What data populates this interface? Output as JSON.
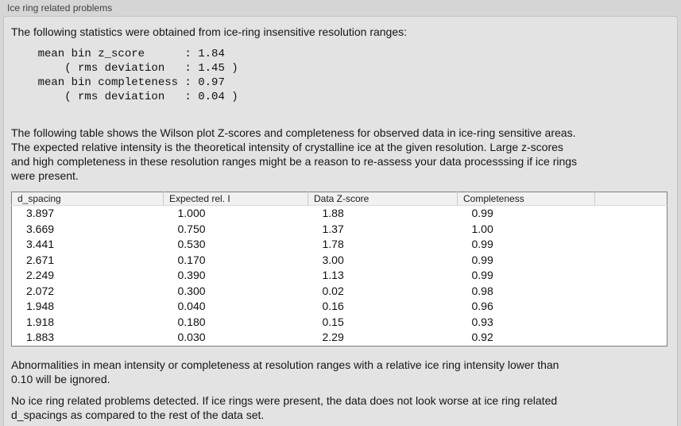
{
  "section": {
    "title": "Ice ring related problems",
    "intro": "The following statistics were obtained from ice-ring insensitive resolution ranges:",
    "statistics": {
      "mean_bin_z_score": "1.84",
      "z_score_rms_deviation": "1.45",
      "mean_bin_completeness": "0.97",
      "completeness_rms_deviation": "0.04",
      "lines": [
        "    mean bin z_score      : 1.84",
        "        ( rms deviation   : 1.45 )",
        "    mean bin completeness : 0.97",
        "        ( rms deviation   : 0.04 )"
      ]
    },
    "table_description": "The following table shows the Wilson plot Z-scores and completeness for observed data in ice-ring sensitive areas.\nThe expected relative intensity is the theoretical intensity of crystalline ice at the given resolution. Large z-scores\nand high completeness in these resolution ranges might be a reason to re-assess your data processsing if ice rings\nwere present.",
    "table": {
      "columns": [
        "d_spacing",
        "Expected rel. I",
        "Data Z-score",
        "Completeness",
        ""
      ],
      "rows": [
        [
          "3.897",
          "1.000",
          "1.88",
          "0.99"
        ],
        [
          "3.669",
          "0.750",
          "1.37",
          "1.00"
        ],
        [
          "3.441",
          "0.530",
          "1.78",
          "0.99"
        ],
        [
          "2.671",
          "0.170",
          "3.00",
          "0.99"
        ],
        [
          "2.249",
          "0.390",
          "1.13",
          "0.99"
        ],
        [
          "2.072",
          "0.300",
          "0.02",
          "0.98"
        ],
        [
          "1.948",
          "0.040",
          "0.16",
          "0.96"
        ],
        [
          "1.918",
          "0.180",
          "0.15",
          "0.93"
        ],
        [
          "1.883",
          "0.030",
          "2.29",
          "0.92"
        ]
      ]
    },
    "ignore_note": "Abnormalities in mean intensity or completeness at resolution ranges with a relative ice ring intensity lower than\n0.10 will be ignored.",
    "conclusion": "No ice ring related problems detected. If ice rings were present, the data does not look worse at ice ring related\nd_spacings as compared to the rest of the data set."
  }
}
